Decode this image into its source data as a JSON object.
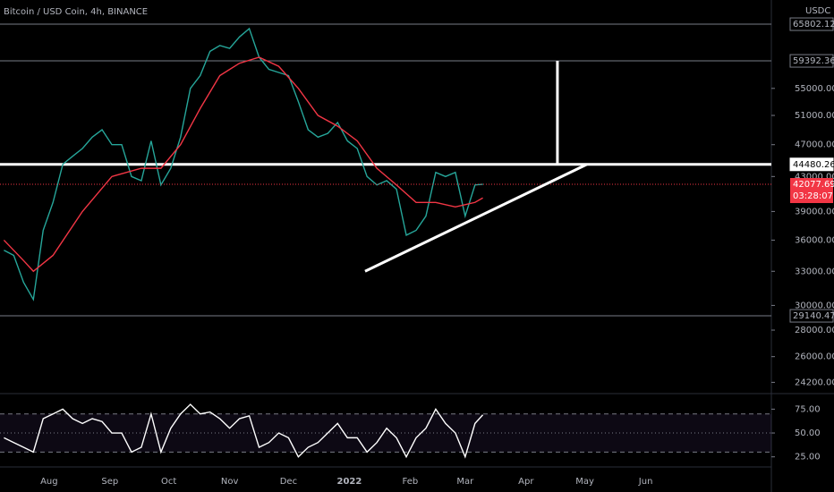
{
  "chart_data": [
    {
      "type": "line",
      "title": "Bitcoin / USD Coin, 4h, BINANCE",
      "currency": "USDC",
      "log_scale": true,
      "xlim": [
        188,
        581
      ],
      "ylim": [
        23450,
        70400
      ],
      "xticks": [
        {
          "value": 213,
          "label": "Aug"
        },
        {
          "value": 244,
          "label": "Sep"
        },
        {
          "value": 274,
          "label": "Oct"
        },
        {
          "value": 305,
          "label": "Nov"
        },
        {
          "value": 335,
          "label": "Dec"
        },
        {
          "value": 366,
          "label": "2022"
        },
        {
          "value": 397,
          "label": "Feb"
        },
        {
          "value": 425,
          "label": "Mar"
        },
        {
          "value": 456,
          "label": "Apr"
        },
        {
          "value": 486,
          "label": "May"
        },
        {
          "value": 517,
          "label": "Jun"
        }
      ],
      "yticks": [
        {
          "value": 55000,
          "label": "55000.00"
        },
        {
          "value": 51000,
          "label": "51000.00"
        },
        {
          "value": 47000,
          "label": "47000.00"
        },
        {
          "value": 43000,
          "label": "43000.00"
        },
        {
          "value": 39000,
          "label": "39000.00"
        },
        {
          "value": 36000,
          "label": "36000.00"
        },
        {
          "value": 33000,
          "label": "33000.00"
        },
        {
          "value": 30000,
          "label": "30000.00"
        },
        {
          "value": 28000,
          "label": "28000.00"
        },
        {
          "value": 26000,
          "label": "26000.00"
        },
        {
          "value": 24200,
          "label": "24200.00"
        }
      ],
      "series": [
        {
          "color": "#26a69a",
          "x": [
            190,
            195,
            200,
            205,
            210,
            215,
            220,
            225,
            230,
            235,
            240,
            245,
            250,
            255,
            260,
            265,
            270,
            275,
            280,
            285,
            290,
            295,
            300,
            305,
            310,
            315,
            320,
            325,
            330,
            335,
            340,
            345,
            350,
            355,
            360,
            365,
            370,
            375,
            380,
            385,
            390,
            395,
            400,
            405,
            410,
            415,
            420,
            425,
            430,
            434
          ],
          "values": [
            35000,
            34500,
            32000,
            30500,
            37000,
            40000,
            44500,
            45500,
            46500,
            48000,
            49000,
            47000,
            47000,
            43000,
            42500,
            47500,
            42000,
            44000,
            48000,
            55000,
            57000,
            61000,
            62000,
            61500,
            63500,
            65000,
            60000,
            58000,
            57500,
            57000,
            53000,
            49000,
            48000,
            48500,
            50000,
            47500,
            46500,
            43000,
            42000,
            42500,
            41500,
            36500,
            37000,
            38500,
            43500,
            43000,
            43500,
            38500,
            42000,
            42077.69
          ]
        },
        {
          "color": "#f23645",
          "x": [
            190,
            200,
            205,
            215,
            230,
            245,
            260,
            270,
            280,
            290,
            300,
            310,
            320,
            330,
            340,
            350,
            360,
            370,
            380,
            390,
            400,
            410,
            420,
            430,
            434
          ],
          "values": [
            36000,
            34000,
            33000,
            34500,
            39000,
            43000,
            44000,
            44000,
            47000,
            52000,
            57000,
            59000,
            60000,
            58500,
            55000,
            51000,
            49500,
            47500,
            44000,
            42000,
            40000,
            40000,
            39500,
            40000,
            40500
          ]
        }
      ],
      "lines": [
        {
          "value": 65802.12,
          "color": "#787b86"
        },
        {
          "value": 59392.36,
          "color": "#787b86"
        },
        {
          "value": 44480.26,
          "color": "#ffffff"
        },
        {
          "value": 29140.47,
          "color": "#787b86"
        }
      ],
      "last_price": {
        "value": 42077.69,
        "countdown": "03:28:07",
        "color": "#f23645"
      },
      "trendline": {
        "x": [
          374,
          487
        ],
        "values": [
          33000,
          44480.26
        ]
      },
      "vertical": {
        "x": 472,
        "values": [
          44480.26,
          59392.36
        ]
      }
    },
    {
      "type": "line",
      "xlim": [
        188,
        581
      ],
      "ylim": [
        14.4,
        91.3
      ],
      "yticks": [
        {
          "value": 75,
          "label": "75.00"
        },
        {
          "value": 50,
          "label": "50.00"
        },
        {
          "value": 25,
          "label": "25.00"
        }
      ],
      "band": [
        30,
        70
      ],
      "midline": 50,
      "series": [
        {
          "color": "#ffffff",
          "x": [
            190,
            195,
            200,
            205,
            210,
            215,
            220,
            225,
            230,
            235,
            240,
            245,
            250,
            255,
            260,
            265,
            270,
            275,
            280,
            285,
            290,
            295,
            300,
            305,
            310,
            315,
            320,
            325,
            330,
            335,
            340,
            345,
            350,
            355,
            360,
            365,
            370,
            375,
            380,
            385,
            390,
            395,
            400,
            405,
            410,
            415,
            420,
            425,
            430,
            434
          ],
          "values": [
            45,
            40,
            35,
            30,
            65,
            70,
            75,
            65,
            60,
            65,
            62,
            50,
            50,
            30,
            35,
            70,
            30,
            55,
            70,
            80,
            70,
            72,
            65,
            55,
            65,
            68,
            35,
            40,
            50,
            45,
            25,
            35,
            40,
            50,
            60,
            45,
            45,
            30,
            40,
            55,
            45,
            25,
            45,
            55,
            75,
            60,
            50,
            25,
            60,
            69
          ]
        }
      ]
    }
  ]
}
